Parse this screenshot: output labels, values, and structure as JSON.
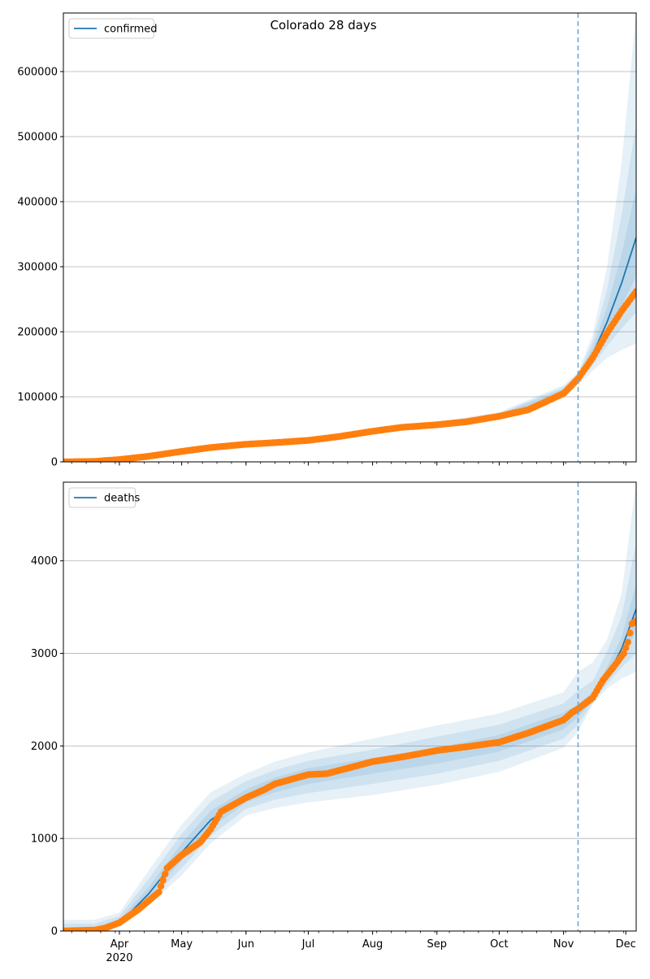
{
  "suptitle": "Colorado 28 days",
  "colors": {
    "model_line": "#1f77b4",
    "observed_points": "#ff7f0e",
    "band": "#1f77b4",
    "grid": "#b0b0b0",
    "forecast_start_line": "#6fa8d0"
  },
  "x_axis": {
    "month_labels": [
      "Apr",
      "May",
      "Jun",
      "Jul",
      "Aug",
      "Sep",
      "Oct",
      "Nov",
      "Dec"
    ],
    "month_dates": [
      "2020-04-01",
      "2020-05-01",
      "2020-06-01",
      "2020-07-01",
      "2020-08-01",
      "2020-09-01",
      "2020-10-01",
      "2020-11-01",
      "2020-12-01"
    ],
    "year_label": "2020",
    "range": [
      "2020-03-05",
      "2020-12-06"
    ],
    "forecast_start": "2020-11-08"
  },
  "chart_data": [
    {
      "type": "line",
      "legend": [
        "confirmed"
      ],
      "legend_position": "top-left",
      "grid": "horizontal",
      "ylim": [
        0,
        690000
      ],
      "yticks": [
        "0",
        "100000",
        "200000",
        "300000",
        "400000",
        "500000",
        "600000"
      ],
      "ytick_values": [
        0,
        100000,
        200000,
        300000,
        400000,
        500000,
        600000
      ],
      "model": {
        "x": [
          "2020-03-05",
          "2020-04-01",
          "2020-05-01",
          "2020-06-01",
          "2020-07-01",
          "2020-08-01",
          "2020-09-01",
          "2020-10-01",
          "2020-10-15",
          "2020-11-01",
          "2020-11-08",
          "2020-11-15",
          "2020-11-22",
          "2020-11-29",
          "2020-12-06"
        ],
        "y": [
          0,
          4000,
          15000,
          27000,
          33000,
          47000,
          58000,
          71000,
          82000,
          108000,
          128000,
          165000,
          215000,
          275000,
          345000
        ]
      },
      "bands": [
        {
          "x": [
            "2020-03-05",
            "2020-05-01",
            "2020-07-01",
            "2020-09-01",
            "2020-10-01",
            "2020-11-01",
            "2020-11-08",
            "2020-11-15",
            "2020-11-22",
            "2020-11-29",
            "2020-12-06"
          ],
          "lower": [
            0,
            13500,
            30500,
            54500,
            66500,
            100000,
            118000,
            140000,
            160000,
            172000,
            182000
          ],
          "upper": [
            2000,
            16500,
            35500,
            61500,
            76500,
            118000,
            138000,
            195000,
            300000,
            460000,
            690000
          ]
        },
        {
          "x": [
            "2020-03-05",
            "2020-05-01",
            "2020-07-01",
            "2020-09-01",
            "2020-10-01",
            "2020-11-01",
            "2020-11-08",
            "2020-11-15",
            "2020-11-22",
            "2020-11-29",
            "2020-12-06"
          ],
          "lower": [
            0,
            14000,
            31500,
            55500,
            68000,
            102000,
            121000,
            148000,
            178000,
            205000,
            230000
          ],
          "upper": [
            1500,
            16000,
            34500,
            60500,
            74500,
            115000,
            135000,
            185000,
            265000,
            380000,
            520000
          ]
        },
        {
          "x": [
            "2020-03-05",
            "2020-05-01",
            "2020-07-01",
            "2020-09-01",
            "2020-10-01",
            "2020-11-01",
            "2020-11-08",
            "2020-11-15",
            "2020-11-22",
            "2020-11-29",
            "2020-12-06"
          ],
          "lower": [
            0,
            14500,
            32000,
            56500,
            69500,
            104000,
            124000,
            156000,
            195000,
            240000,
            285000
          ],
          "upper": [
            1000,
            15500,
            34000,
            59500,
            73000,
            112000,
            132000,
            175000,
            238000,
            320000,
            420000
          ]
        }
      ],
      "observed": {
        "x": [
          "2020-03-05",
          "2020-03-20",
          "2020-04-01",
          "2020-04-15",
          "2020-05-01",
          "2020-05-15",
          "2020-06-01",
          "2020-06-15",
          "2020-07-01",
          "2020-07-15",
          "2020-08-01",
          "2020-08-15",
          "2020-09-01",
          "2020-09-15",
          "2020-10-01",
          "2020-10-15",
          "2020-11-01",
          "2020-11-05",
          "2020-11-08",
          "2020-11-15",
          "2020-11-22",
          "2020-11-29",
          "2020-12-06"
        ],
        "y": [
          0,
          700,
          3500,
          8500,
          16000,
          22000,
          27000,
          29500,
          33000,
          38500,
          47000,
          53000,
          57000,
          61500,
          70000,
          80000,
          105000,
          118000,
          128000,
          160000,
          198000,
          232000,
          262000
        ]
      }
    },
    {
      "type": "line",
      "legend": [
        "deaths"
      ],
      "legend_position": "top-left",
      "grid": "horizontal",
      "ylim": [
        0,
        4850
      ],
      "yticks": [
        "0",
        "1000",
        "2000",
        "3000",
        "4000"
      ],
      "ytick_values": [
        0,
        1000,
        2000,
        3000,
        4000
      ],
      "model": {
        "x": [
          "2020-03-05",
          "2020-03-20",
          "2020-04-01",
          "2020-04-15",
          "2020-05-01",
          "2020-05-15",
          "2020-06-01",
          "2020-06-15",
          "2020-07-01",
          "2020-07-15",
          "2020-08-01",
          "2020-08-15",
          "2020-09-01",
          "2020-09-15",
          "2020-10-01",
          "2020-10-15",
          "2020-11-01",
          "2020-11-08",
          "2020-11-15",
          "2020-11-22",
          "2020-11-29",
          "2020-12-06"
        ],
        "y": [
          0,
          10,
          80,
          400,
          850,
          1200,
          1450,
          1580,
          1680,
          1750,
          1820,
          1880,
          1940,
          1990,
          2050,
          2140,
          2280,
          2380,
          2520,
          2750,
          3050,
          3480
        ]
      },
      "bands": [
        {
          "x": [
            "2020-03-05",
            "2020-03-20",
            "2020-04-01",
            "2020-04-15",
            "2020-05-01",
            "2020-05-15",
            "2020-06-01",
            "2020-06-15",
            "2020-07-01",
            "2020-08-01",
            "2020-09-01",
            "2020-10-01",
            "2020-11-01",
            "2020-11-08",
            "2020-11-15",
            "2020-11-22",
            "2020-11-29",
            "2020-12-06"
          ],
          "lower": [
            0,
            0,
            50,
            280,
            600,
            950,
            1250,
            1330,
            1390,
            1470,
            1580,
            1720,
            1980,
            2150,
            2450,
            2620,
            2730,
            2800
          ],
          "upper": [
            120,
            120,
            200,
            650,
            1150,
            1500,
            1700,
            1830,
            1930,
            2080,
            2220,
            2350,
            2580,
            2800,
            2900,
            3150,
            3650,
            4850
          ]
        },
        {
          "x": [
            "2020-03-05",
            "2020-03-20",
            "2020-04-01",
            "2020-04-15",
            "2020-05-01",
            "2020-05-15",
            "2020-06-01",
            "2020-06-15",
            "2020-07-01",
            "2020-08-01",
            "2020-09-01",
            "2020-10-01",
            "2020-11-01",
            "2020-11-08",
            "2020-11-15",
            "2020-11-22",
            "2020-11-29",
            "2020-12-06"
          ],
          "lower": [
            0,
            0,
            60,
            320,
            680,
            1030,
            1320,
            1420,
            1490,
            1590,
            1700,
            1840,
            2080,
            2230,
            2470,
            2670,
            2850,
            3000
          ],
          "upper": [
            80,
            80,
            160,
            560,
            1050,
            1400,
            1620,
            1740,
            1840,
            1960,
            2100,
            2230,
            2460,
            2600,
            2700,
            3020,
            3400,
            4200
          ]
        },
        {
          "x": [
            "2020-03-05",
            "2020-03-20",
            "2020-04-01",
            "2020-04-15",
            "2020-05-01",
            "2020-05-15",
            "2020-06-01",
            "2020-06-15",
            "2020-07-01",
            "2020-08-01",
            "2020-09-01",
            "2020-10-01",
            "2020-11-01",
            "2020-11-08",
            "2020-11-15",
            "2020-11-22",
            "2020-11-29",
            "2020-12-06"
          ],
          "lower": [
            0,
            0,
            70,
            360,
            760,
            1110,
            1390,
            1500,
            1590,
            1700,
            1810,
            1940,
            2180,
            2310,
            2490,
            2710,
            2960,
            3230
          ],
          "upper": [
            40,
            40,
            120,
            470,
            950,
            1300,
            1530,
            1660,
            1760,
            1870,
            1980,
            2120,
            2360,
            2450,
            2580,
            2850,
            3180,
            3750
          ]
        }
      ],
      "observed": {
        "x": [
          "2020-03-05",
          "2020-03-20",
          "2020-03-25",
          "2020-04-01",
          "2020-04-10",
          "2020-04-20",
          "2020-04-24",
          "2020-05-01",
          "2020-05-10",
          "2020-05-15",
          "2020-05-20",
          "2020-06-01",
          "2020-06-10",
          "2020-06-15",
          "2020-07-01",
          "2020-07-10",
          "2020-07-15",
          "2020-08-01",
          "2020-08-15",
          "2020-09-01",
          "2020-09-15",
          "2020-10-01",
          "2020-10-15",
          "2020-11-01",
          "2020-11-05",
          "2020-11-08",
          "2020-11-15",
          "2020-11-20",
          "2020-11-25",
          "2020-11-30",
          "2020-12-02",
          "2020-12-04",
          "2020-12-06"
        ],
        "y": [
          0,
          10,
          30,
          90,
          230,
          420,
          680,
          820,
          960,
          1100,
          1290,
          1440,
          1530,
          1590,
          1690,
          1700,
          1730,
          1830,
          1880,
          1950,
          1990,
          2040,
          2140,
          2280,
          2360,
          2400,
          2520,
          2710,
          2850,
          3000,
          3120,
          3320,
          3350
        ]
      }
    }
  ]
}
